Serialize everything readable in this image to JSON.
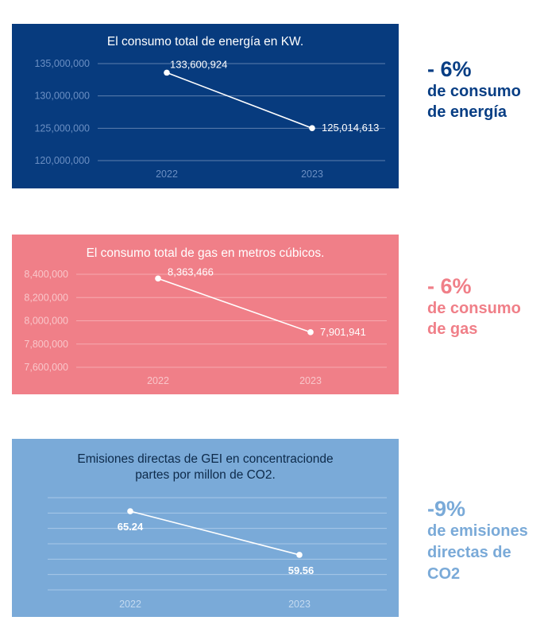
{
  "charts": [
    {
      "card_color": "#073b7e",
      "grid_color": "#5d7fae",
      "tick_color": "#6b8fc3",
      "title_color": "#ffffff",
      "title_lines": [
        "El consumo total de energía en KW."
      ],
      "stat": {
        "percent": "- 6%",
        "caption": "de consumo\nde energía",
        "color": "#083e84"
      },
      "chart_data": {
        "type": "line",
        "title": "El consumo total de energía en KW.",
        "categories": [
          "2022",
          "2023"
        ],
        "values": [
          133600924,
          125014613
        ],
        "data_labels": [
          "133,600,924",
          "125,014,613"
        ],
        "yticks": [
          135000000,
          130000000,
          125000000,
          120000000
        ],
        "ytick_labels": [
          "135,000,000",
          "130,000,000",
          "125,000,000",
          "120,000,000"
        ],
        "ylim": [
          120000000,
          135000000
        ],
        "grid": true
      }
    },
    {
      "card_color": "#f07f88",
      "grid_color": "#f6aab0",
      "tick_color": "#f9c6ca",
      "title_color": "#ffffff",
      "title_lines": [
        "El consumo total de gas en metros cúbicos."
      ],
      "stat": {
        "percent": "- 6%",
        "caption": "de consumo\nde gas",
        "color": "#f07f88"
      },
      "chart_data": {
        "type": "line",
        "title": "El consumo total de gas en metros cúbicos.",
        "categories": [
          "2022",
          "2023"
        ],
        "values": [
          8363466,
          7901941
        ],
        "data_labels": [
          "8,363,466",
          "7,901,941"
        ],
        "yticks": [
          8400000,
          8200000,
          8000000,
          7800000,
          7600000
        ],
        "ytick_labels": [
          "8,400,000",
          "8,200,000",
          "8,000,000",
          "7,800,000",
          "7,600,000"
        ],
        "ylim": [
          7600000,
          8400000
        ],
        "grid": true
      }
    },
    {
      "card_color": "#7aaad8",
      "grid_color": "#a8c8e8",
      "tick_color": "#c4daf0",
      "title_color": "#0d2a4a",
      "title_lines": [
        "Emisiones directas de GEI en concentracionde",
        "partes por millon de CO2."
      ],
      "stat": {
        "percent": "-9%",
        "caption": "de emisiones\ndirectas de\nCO2",
        "color": "#7aaad8"
      },
      "chart_data": {
        "type": "line",
        "title": "Emisiones directas de GEI en concentracionde partes por millon de CO2.",
        "categories": [
          "2022",
          "2023"
        ],
        "values": [
          65.24,
          59.56
        ],
        "data_labels": [
          "65.24",
          "59.56"
        ],
        "yticks": [],
        "ytick_labels": [],
        "ylim": [
          55,
          67
        ],
        "grid": true
      }
    }
  ]
}
